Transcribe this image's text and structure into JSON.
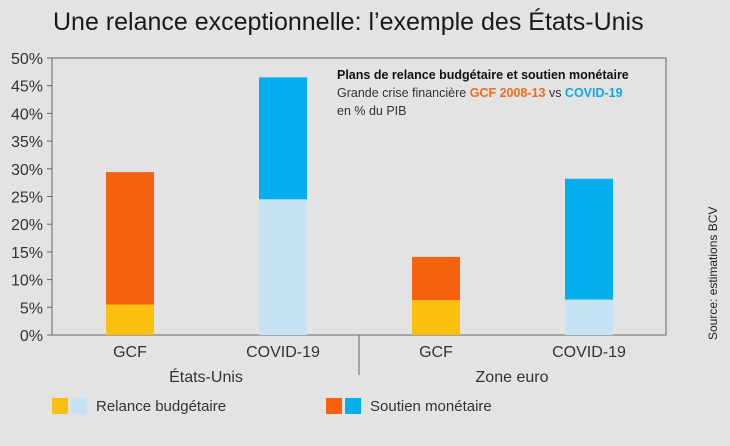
{
  "title": "Une relance exceptionnelle: l’exemple des États-Unis",
  "source": "Source: estimations BCV",
  "annotation": {
    "heading": "Plans de relance budgétaire et soutien monétaire",
    "line2_prefix": "Grande crise financière",
    "gcf": "GCF 2008-13",
    "vs": "vs",
    "covid": "COVID-19",
    "line3": "en % du PIB"
  },
  "legend": [
    {
      "label": "Relance budgétaire",
      "colors": [
        "#fbbf0f",
        "#c6e3f5"
      ]
    },
    {
      "label": "Soutien monétaire",
      "colors": [
        "#f6620e",
        "#04aeee"
      ]
    }
  ],
  "chart_data": {
    "type": "bar",
    "stacked": true,
    "title": "Une relance exceptionnelle: l’exemple des États-Unis",
    "ylim": [
      0,
      50
    ],
    "yticks": [
      "0%",
      "5%",
      "10%",
      "15%",
      "20%",
      "25%",
      "30%",
      "35%",
      "40%",
      "45%",
      "50%"
    ],
    "groups": [
      "États-Unis",
      "Zone euro"
    ],
    "categories": [
      "GCF",
      "COVID-19",
      "GCF",
      "COVID-19"
    ],
    "series": [
      {
        "name": "Relance budgétaire",
        "values": [
          5.5,
          24.5,
          6.3,
          6.4
        ],
        "colors": [
          "#fbbf0f",
          "#c6e3f5",
          "#fbbf0f",
          "#c6e3f5"
        ]
      },
      {
        "name": "Soutien monétaire",
        "values": [
          23.9,
          22.0,
          7.8,
          21.8
        ],
        "colors": [
          "#f6620e",
          "#04aeee",
          "#f6620e",
          "#04aeee"
        ]
      }
    ],
    "grid": false
  }
}
